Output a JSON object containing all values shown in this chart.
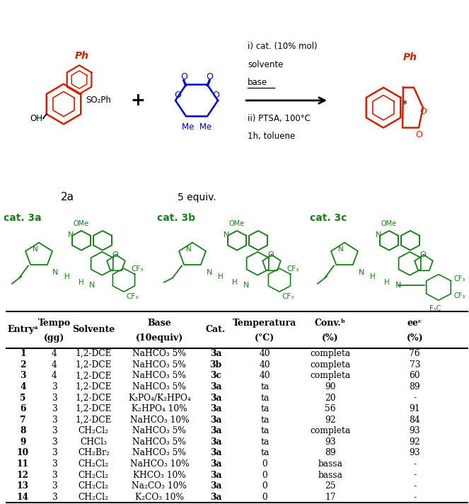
{
  "rows": [
    [
      "1",
      "4",
      "1,2-DCE",
      "NaHCO₃ 5%",
      "3a",
      "40",
      "completa",
      "76"
    ],
    [
      "2",
      "4",
      "1,2-DCE",
      "NaHCO₃ 5%",
      "3b",
      "40",
      "completa",
      "73"
    ],
    [
      "3",
      "4",
      "1,2-DCE",
      "NaHCO₃ 5%",
      "3c",
      "40",
      "completa",
      "60"
    ],
    [
      "4",
      "3",
      "1,2-DCE",
      "NaHCO₃ 5%",
      "3a",
      "ta",
      "90",
      "89"
    ],
    [
      "5",
      "3",
      "1,2-DCE",
      "K₃PO₄/K₂HPO₄",
      "3a",
      "ta",
      "20",
      "-"
    ],
    [
      "6",
      "3",
      "1,2-DCE",
      "K₂HPO₄ 10%",
      "3a",
      "ta",
      "56",
      "91"
    ],
    [
      "7",
      "3",
      "1,2-DCE",
      "NaHCO₃ 10%",
      "3a",
      "ta",
      "92",
      "84"
    ],
    [
      "8",
      "3",
      "CH₂Cl₂",
      "NaHCO₃ 5%",
      "3a",
      "ta",
      "completa",
      "93"
    ],
    [
      "9",
      "3",
      "CHCl₃",
      "NaHCO₃ 5%",
      "3a",
      "ta",
      "93",
      "92"
    ],
    [
      "10",
      "3",
      "CH₂Br₂",
      "NaHCO₃ 5%",
      "3a",
      "ta",
      "89",
      "93"
    ],
    [
      "11",
      "3",
      "CH₂Cl₂",
      "NaHCO₃ 10%",
      "3a",
      "0",
      "bassa",
      "-"
    ],
    [
      "12",
      "3",
      "CH₂Cl₂",
      "KHCO₃ 10%",
      "3a",
      "0",
      "bassa",
      "-"
    ],
    [
      "13",
      "3",
      "CH₂Cl₂",
      "Na₂CO₃ 10%",
      "3a",
      "0",
      "25",
      "-"
    ],
    [
      "14",
      "3",
      "CH₂Cl₂",
      "K₂CO₃ 10%",
      "3a",
      "0",
      "17",
      "-"
    ]
  ],
  "bg_color": "#ffffff",
  "black": "#000000",
  "green": "#1e7b1e",
  "red": "#cc2200",
  "blue": "#0000cc",
  "figsize": [
    6.63,
    7.12
  ],
  "dpi": 100
}
